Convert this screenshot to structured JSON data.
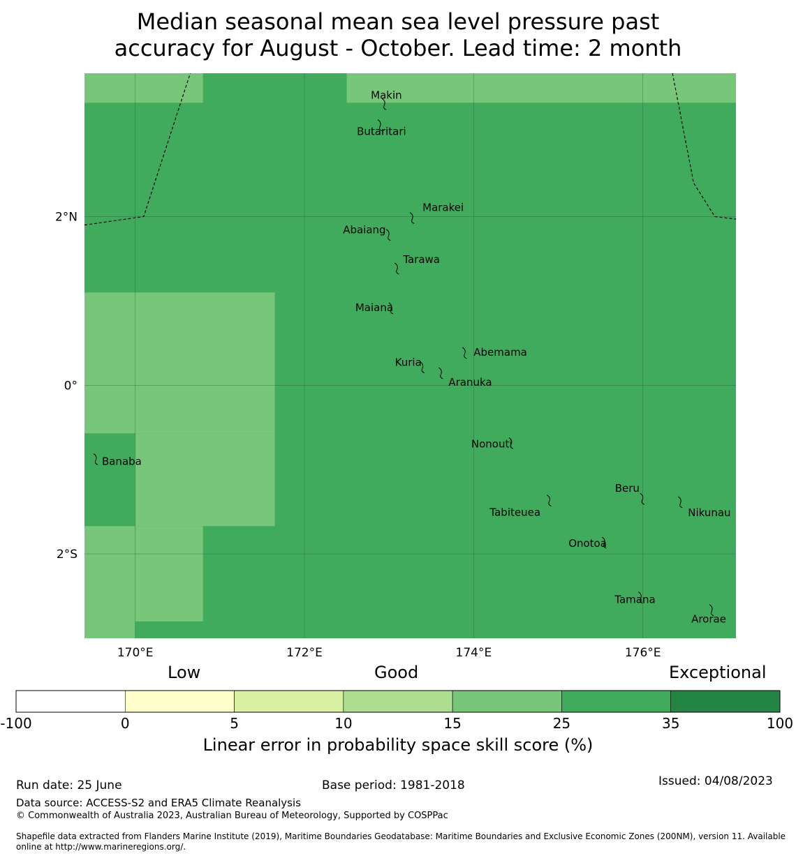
{
  "title": {
    "line1": "Median seasonal mean sea level pressure past",
    "line2": "accuracy for August - October. Lead time: 2 month"
  },
  "map": {
    "lon_range": [
      169.4,
      177.1
    ],
    "lat_range": [
      -3.0,
      3.7
    ],
    "x_ticks": [
      {
        "lon": 170,
        "label": "170°E"
      },
      {
        "lon": 172,
        "label": "172°E"
      },
      {
        "lon": 174,
        "label": "174°E"
      },
      {
        "lon": 176,
        "label": "176°E"
      }
    ],
    "y_ticks": [
      {
        "lat": 2,
        "label": "2°N"
      },
      {
        "lat": 0,
        "label": "0°"
      },
      {
        "lat": -2,
        "label": "2°S"
      }
    ],
    "base_class": "25-35",
    "cells": [
      {
        "lon": [
          169.4,
          170.8
        ],
        "lat": [
          3.35,
          3.7
        ],
        "class": "15-25"
      },
      {
        "lon": [
          172.5,
          177.1
        ],
        "lat": [
          3.35,
          3.7
        ],
        "class": "15-25"
      },
      {
        "lon": [
          169.4,
          171.65
        ],
        "lat": [
          -0.57,
          1.1
        ],
        "class": "15-25"
      },
      {
        "lon": [
          170.0,
          171.65
        ],
        "lat": [
          -1.67,
          -0.57
        ],
        "class": "15-25"
      },
      {
        "lon": [
          169.4,
          170.0
        ],
        "lat": [
          -3.0,
          -1.67
        ],
        "class": "15-25"
      },
      {
        "lon": [
          170.0,
          170.8
        ],
        "lat": [
          -2.8,
          -1.67
        ],
        "class": "15-25"
      }
    ],
    "eez_boundaries": [
      [
        [
          169.4,
          1.9
        ],
        [
          170.1,
          2.0
        ],
        [
          170.65,
          3.7
        ]
      ],
      [
        [
          176.35,
          3.7
        ],
        [
          176.6,
          2.4
        ],
        [
          176.85,
          2.0
        ],
        [
          177.1,
          1.97
        ]
      ]
    ],
    "islands": [
      {
        "name": "Makin",
        "lon": 172.95,
        "lat": 3.35,
        "label_dx": -20,
        "label_dy": -6
      },
      {
        "name": "Butaritari",
        "lon": 172.9,
        "lat": 3.1,
        "label_dx": -34,
        "label_dy": 16
      },
      {
        "name": "Marakei",
        "lon": 173.28,
        "lat": 2.0,
        "label_dx": 14,
        "label_dy": -8
      },
      {
        "name": "Abaiang",
        "lon": 173.0,
        "lat": 1.8,
        "label_dx": -66,
        "label_dy": 0
      },
      {
        "name": "Tarawa",
        "lon": 173.1,
        "lat": 1.4,
        "label_dx": 8,
        "label_dy": -6
      },
      {
        "name": "Maiana",
        "lon": 173.03,
        "lat": 0.93,
        "label_dx": -52,
        "label_dy": 6
      },
      {
        "name": "Abemama",
        "lon": 173.9,
        "lat": 0.4,
        "label_dx": 12,
        "label_dy": 6
      },
      {
        "name": "Kuria",
        "lon": 173.4,
        "lat": 0.23,
        "label_dx": -40,
        "label_dy": 0
      },
      {
        "name": "Aranuka",
        "lon": 173.62,
        "lat": 0.16,
        "label_dx": 10,
        "label_dy": 20
      },
      {
        "name": "Nonouti",
        "lon": 174.45,
        "lat": -0.67,
        "label_dx": -58,
        "label_dy": 8
      },
      {
        "name": "Banaba",
        "lon": 169.54,
        "lat": -0.86,
        "label_dx": 8,
        "label_dy": 10
      },
      {
        "name": "Tabiteuea",
        "lon": 174.9,
        "lat": -1.35,
        "label_dx": -86,
        "label_dy": 24
      },
      {
        "name": "Beru",
        "lon": 176.0,
        "lat": -1.33,
        "label_dx": -40,
        "label_dy": -8
      },
      {
        "name": "Nikunau",
        "lon": 176.45,
        "lat": -1.37,
        "label_dx": 10,
        "label_dy": 22
      },
      {
        "name": "Onotoa",
        "lon": 175.55,
        "lat": -1.85,
        "label_dx": -52,
        "label_dy": 8
      },
      {
        "name": "Tamana",
        "lon": 175.98,
        "lat": -2.5,
        "label_dx": -38,
        "label_dy": 10
      },
      {
        "name": "Arorae",
        "lon": 176.82,
        "lat": -2.65,
        "label_dx": -30,
        "label_dy": 20
      }
    ]
  },
  "colorbar": {
    "category_labels": [
      "Low",
      "Good",
      "Exceptional"
    ],
    "bins": [
      {
        "from": "-100",
        "to": "0",
        "color": "#ffffff"
      },
      {
        "from": "0",
        "to": "5",
        "color": "#ffffcc"
      },
      {
        "from": "5",
        "to": "10",
        "color": "#d9f0a3"
      },
      {
        "from": "10",
        "to": "15",
        "color": "#addd8e"
      },
      {
        "from": "15",
        "to": "25",
        "color": "#78c679"
      },
      {
        "from": "25",
        "to": "35",
        "color": "#41ab5d"
      },
      {
        "from": "35",
        "to": "100",
        "color": "#238443"
      }
    ],
    "tick_labels": [
      "-100",
      "0",
      "5",
      "10",
      "15",
      "25",
      "35",
      "100"
    ],
    "axis_title": "Linear error in probability space skill score (%)"
  },
  "colors": {
    "15-25": "#78c679",
    "25-35": "#41ab5d"
  },
  "footer": {
    "run_date": "Run date: 25 June",
    "base_period": "Base period: 1981-2018",
    "issued": "Issued: 04/08/2023",
    "data_source": "Data source: ACCESS-S2 and ERA5 Climate Reanalysis",
    "copyright": "© Commonwealth of Australia 2023, Australian Bureau of Meteorology, Supported by COSPPac",
    "shapefile": "Shapefile data extracted from Flanders Marine Institute (2019), Maritime Boundaries Geodatabase: Maritime Boundaries and Exclusive Economic Zones (200NM), version 11. Available online at http://www.marineregions.org/."
  }
}
